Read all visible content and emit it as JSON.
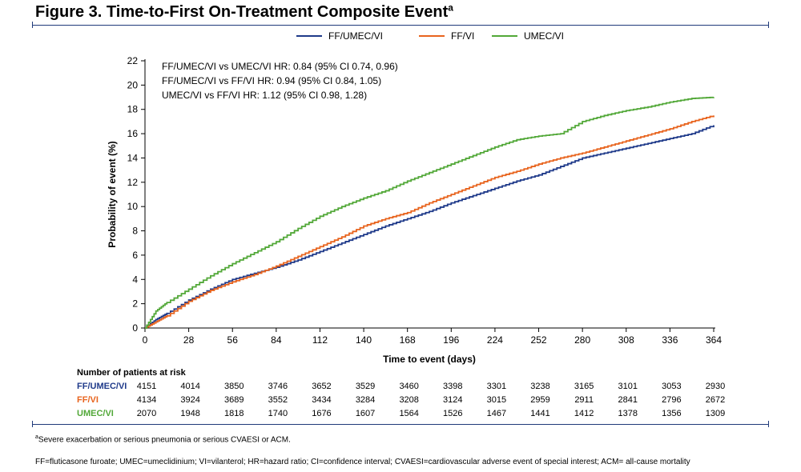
{
  "title": {
    "text": "Figure 3. Time-to-First On-Treatment Composite Event",
    "sup": "a"
  },
  "colors": {
    "navy": "#1f3a8a",
    "orange": "#e8641e",
    "green": "#52a838",
    "rule": "#1f3a7a"
  },
  "chart_data": {
    "type": "line",
    "xlabel": "Time to event (days)",
    "ylabel": "Probability of event (%)",
    "xlim": [
      0,
      364
    ],
    "ylim": [
      0,
      22
    ],
    "x_ticks": [
      "0",
      "28",
      "56",
      "84",
      "112",
      "140",
      "168",
      "196",
      "224",
      "252",
      "280",
      "308",
      "336",
      "364"
    ],
    "y_ticks": [
      "0",
      "2",
      "4",
      "6",
      "8",
      "10",
      "12",
      "14",
      "16",
      "18",
      "20",
      "22"
    ],
    "legend_position": "top-center",
    "grid": false,
    "annotations": [
      "FF/UMEC/VI vs UMEC/VI HR: 0.84 (95% CI 0.74, 0.96)",
      "FF/UMEC/VI vs FF/VI HR: 0.94 (95% CI 0.84, 1.05)",
      "UMEC/VI vs FF/VI HR: 1.12 (95% CI 0.98, 1.28)"
    ],
    "x": [
      0,
      7,
      14,
      28,
      42,
      56,
      70,
      84,
      98,
      112,
      126,
      140,
      154,
      168,
      182,
      196,
      210,
      224,
      238,
      252,
      266,
      280,
      294,
      308,
      322,
      336,
      350,
      364
    ],
    "series": [
      {
        "name": "FF/UMEC/VI",
        "color": "#1f3a8a",
        "values": [
          0,
          0.7,
          1.2,
          2.3,
          3.2,
          4.0,
          4.5,
          5.0,
          5.6,
          6.3,
          7.0,
          7.7,
          8.4,
          9.0,
          9.6,
          10.3,
          10.9,
          11.5,
          12.1,
          12.6,
          13.3,
          14.0,
          14.4,
          14.8,
          15.2,
          15.6,
          16.0,
          16.7
        ]
      },
      {
        "name": "FF/VI",
        "color": "#e8641e",
        "values": [
          0,
          0.5,
          1.0,
          2.2,
          3.1,
          3.8,
          4.4,
          5.1,
          5.9,
          6.7,
          7.5,
          8.4,
          9.0,
          9.5,
          10.3,
          11.0,
          11.7,
          12.4,
          12.9,
          13.5,
          14.0,
          14.4,
          14.9,
          15.4,
          15.9,
          16.4,
          17.0,
          17.5
        ]
      },
      {
        "name": "UMEC/VI",
        "color": "#52a838",
        "values": [
          0,
          1.4,
          2.1,
          3.2,
          4.3,
          5.3,
          6.2,
          7.1,
          8.2,
          9.2,
          10.0,
          10.7,
          11.3,
          12.1,
          12.8,
          13.5,
          14.2,
          14.9,
          15.5,
          15.8,
          16.0,
          17.0,
          17.5,
          17.9,
          18.2,
          18.6,
          18.9,
          19.0
        ]
      }
    ]
  },
  "risk_table": {
    "heading": "Number of patients at risk",
    "rows": [
      {
        "label": "FF/UMEC/VI",
        "color": "#1f3a8a",
        "values": [
          "4151",
          "4014",
          "3850",
          "3746",
          "3652",
          "3529",
          "3460",
          "3398",
          "3301",
          "3238",
          "3165",
          "3101",
          "3053",
          "2930"
        ]
      },
      {
        "label": "FF/VI",
        "color": "#e8641e",
        "values": [
          "4134",
          "3924",
          "3689",
          "3552",
          "3434",
          "3284",
          "3208",
          "3124",
          "3015",
          "2959",
          "2911",
          "2841",
          "2796",
          "2672"
        ]
      },
      {
        "label": "UMEC/VI",
        "color": "#52a838",
        "values": [
          "2070",
          "1948",
          "1818",
          "1740",
          "1676",
          "1607",
          "1564",
          "1526",
          "1467",
          "1441",
          "1412",
          "1378",
          "1356",
          "1309"
        ]
      }
    ]
  },
  "footnotes": {
    "sup": "a",
    "line1": "Severe exacerbation or serious pneumonia or serious CVAESI or ACM.",
    "line2": "FF=fluticasone furoate; UMEC=umeclidinium; VI=vilanterol; HR=hazard ratio; CI=confidence interval; CVAESI=cardiovascular adverse event of special interest; ACM= all-cause mortality"
  }
}
